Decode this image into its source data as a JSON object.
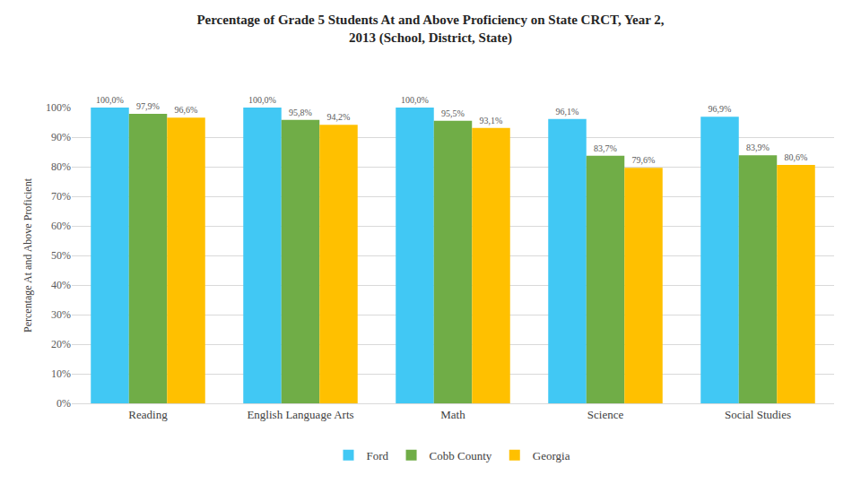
{
  "chart_data": {
    "type": "bar",
    "title": "Percentage of Grade 5 Students At and Above Proficiency on State CRCT, Year 2, 2013 (School, District, State)",
    "y_label": "Percentage At and Above Proficient",
    "categories": [
      "Reading",
      "English Language Arts",
      "Math",
      "Science",
      "Social Studies"
    ],
    "series": [
      {
        "name": "Ford",
        "color": "#41c8f4",
        "values": [
          100.0,
          100.0,
          100.0,
          96.1,
          96.9
        ],
        "value_labels": [
          "100,0%",
          "100,0%",
          "100,0%",
          "96,1%",
          "96,9%"
        ]
      },
      {
        "name": "Cobb County",
        "color": "#70ad47",
        "values": [
          97.9,
          95.8,
          95.5,
          83.7,
          83.9
        ],
        "value_labels": [
          "97,9%",
          "95,8%",
          "95,5%",
          "83,7%",
          "83,9%"
        ]
      },
      {
        "name": "Georgia",
        "color": "#ffc000",
        "values": [
          96.6,
          94.2,
          93.1,
          79.6,
          80.6
        ],
        "value_labels": [
          "96,6%",
          "94,2%",
          "93,1%",
          "79,6%",
          "80,6%"
        ]
      }
    ],
    "ylim": [
      0,
      100
    ],
    "yticks": [
      {
        "value": 0,
        "label": "0%"
      },
      {
        "value": 10,
        "label": "10%"
      },
      {
        "value": 20,
        "label": "20%"
      },
      {
        "value": 30,
        "label": "30%"
      },
      {
        "value": 40,
        "label": "40%"
      },
      {
        "value": 50,
        "label": "50%"
      },
      {
        "value": 60,
        "label": "60%"
      },
      {
        "value": 70,
        "label": "70%"
      },
      {
        "value": 80,
        "label": "80%"
      },
      {
        "value": 90,
        "label": "90%"
      },
      {
        "value": 100,
        "label": "100%"
      }
    ],
    "grid": true,
    "legend": "bottom",
    "data_labels": true
  }
}
